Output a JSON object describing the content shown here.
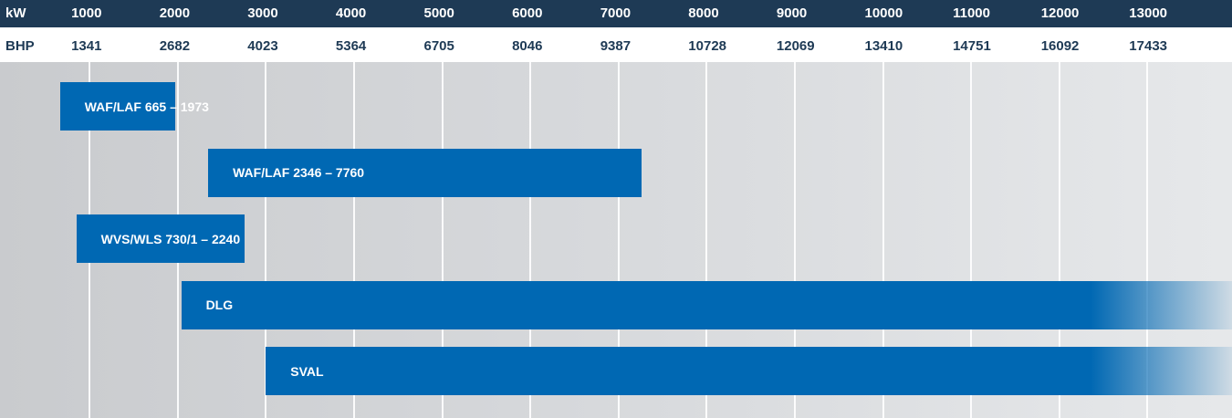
{
  "chart_data": {
    "type": "bar",
    "orientation": "horizontal-range",
    "axes": {
      "primary": {
        "unit": "kW",
        "ticks": [
          1000,
          2000,
          3000,
          4000,
          5000,
          6000,
          7000,
          8000,
          9000,
          10000,
          11000,
          12000,
          13000
        ]
      },
      "secondary": {
        "unit": "BHP",
        "ticks": [
          1341,
          2682,
          4023,
          5364,
          6705,
          8046,
          9387,
          10728,
          12069,
          13410,
          14751,
          16092,
          17433
        ]
      }
    },
    "xlim": [
      0,
      13950
    ],
    "grid": true,
    "series": [
      {
        "name": "WAF/LAF 665 – 1973",
        "start": 665,
        "end": 1973,
        "open_ended": false
      },
      {
        "name": "WAF/LAF 2346 – 7760",
        "start": 2346,
        "end": 7260,
        "open_ended": false
      },
      {
        "name": "WVS/WLS 730/1 – 2240",
        "start": 850,
        "end": 2763,
        "open_ended": false
      },
      {
        "name": "DLG",
        "start": 2040,
        "end": 13950,
        "open_ended": true
      },
      {
        "name": "SVAL",
        "start": 3000,
        "end": 13950,
        "open_ended": true
      }
    ],
    "colors": {
      "bar": "#0068b3",
      "header": "#1e3a55",
      "background": "#d6d8db"
    }
  }
}
